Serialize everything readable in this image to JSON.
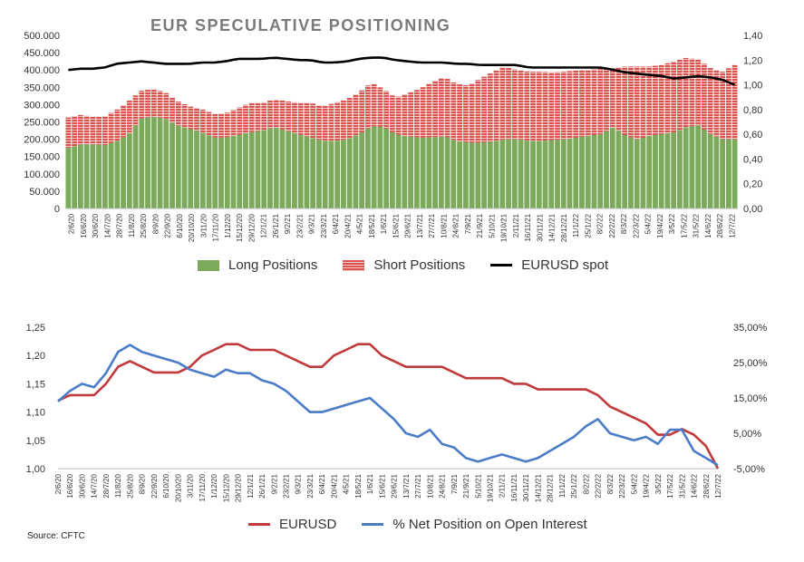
{
  "chart_data": [
    {
      "type": "bar",
      "title": "EUR SPECULATIVE POSITIONING",
      "stacked": true,
      "y_left": {
        "min": 0,
        "max": 500000,
        "ticks": [
          "0",
          "50.000",
          "100.000",
          "150.000",
          "200.000",
          "250.000",
          "300.000",
          "350.000",
          "400.000",
          "450.000",
          "500.000"
        ]
      },
      "y_right": {
        "min": 0,
        "max": 1.4,
        "ticks": [
          "0,00",
          "0,20",
          "0,40",
          "0,60",
          "0,80",
          "1,00",
          "1,20",
          "1,40"
        ]
      },
      "x_tick_labels": [
        "2/6/20",
        "16/6/20",
        "30/6/20",
        "14/7/20",
        "28/7/20",
        "11/8/20",
        "25/8/20",
        "8/9/20",
        "22/9/20",
        "6/10/20",
        "20/10/20",
        "3/11/20",
        "17/11/20",
        "1/12/20",
        "15/12/20",
        "29/12/20",
        "12/1/21",
        "26/1/21",
        "9/2/21",
        "23/2/21",
        "9/3/21",
        "23/3/21",
        "6/4/21",
        "20/4/21",
        "4/5/21",
        "18/5/21",
        "1/6/21",
        "15/6/21",
        "29/6/21",
        "13/7/21",
        "27/7/21",
        "10/8/21",
        "24/8/21",
        "7/9/21",
        "21/9/21",
        "5/10/21",
        "19/10/21",
        "2/11/21",
        "16/11/21",
        "30/11/21",
        "14/12/21",
        "28/12/21",
        "11/1/22",
        "25/1/22",
        "8/2/22",
        "22/2/22",
        "8/3/22",
        "22/3/22",
        "5/4/22",
        "19/4/22",
        "3/5/22",
        "17/5/22",
        "31/5/22",
        "14/6/22",
        "28/6/22",
        "12/7/22"
      ],
      "legend": [
        "Long Positions",
        "Short Positions",
        "EURUSD spot"
      ],
      "colors": {
        "long": "#7aaa5a",
        "short": "#d9534f",
        "spot": "#000000"
      },
      "long_anchors": [
        175000,
        185000,
        185000,
        183000,
        195000,
        215000,
        260000,
        265000,
        260000,
        240000,
        230000,
        220000,
        205000,
        205000,
        212000,
        220000,
        225000,
        235000,
        225000,
        215000,
        205000,
        195000,
        195000,
        200000,
        215000,
        238000,
        235000,
        215000,
        208000,
        205000,
        205000,
        210000,
        195000,
        190000,
        190000,
        193000,
        200000,
        200000,
        195000,
        195000,
        198000,
        200000,
        205000,
        210000,
        215000,
        235000,
        210000,
        200000,
        210000,
        215000,
        220000,
        235000,
        240000,
        215000,
        200000,
        200000
      ],
      "short_anchors": [
        88000,
        85000,
        80000,
        83000,
        90000,
        95000,
        80000,
        80000,
        75000,
        70000,
        65000,
        67000,
        68000,
        70000,
        78000,
        85000,
        80000,
        80000,
        85000,
        90000,
        100000,
        100000,
        110000,
        115000,
        120000,
        125000,
        110000,
        105000,
        125000,
        140000,
        160000,
        170000,
        165000,
        165000,
        185000,
        200000,
        210000,
        200000,
        200000,
        200000,
        195000,
        195000,
        195000,
        190000,
        190000,
        170000,
        200000,
        210000,
        200000,
        200000,
        205000,
        200000,
        190000,
        190000,
        195000,
        215000
      ],
      "spot_anchors": [
        1.12,
        1.13,
        1.13,
        1.14,
        1.17,
        1.18,
        1.19,
        1.18,
        1.17,
        1.17,
        1.17,
        1.18,
        1.18,
        1.19,
        1.21,
        1.21,
        1.21,
        1.22,
        1.21,
        1.2,
        1.2,
        1.18,
        1.18,
        1.19,
        1.21,
        1.22,
        1.22,
        1.2,
        1.19,
        1.18,
        1.18,
        1.18,
        1.17,
        1.17,
        1.16,
        1.16,
        1.16,
        1.16,
        1.14,
        1.14,
        1.14,
        1.14,
        1.14,
        1.14,
        1.14,
        1.12,
        1.1,
        1.09,
        1.08,
        1.07,
        1.05,
        1.06,
        1.07,
        1.06,
        1.04,
        1.0
      ]
    },
    {
      "type": "line",
      "y_left": {
        "min": 1.0,
        "max": 1.25,
        "ticks": [
          "1,00",
          "1,05",
          "1,10",
          "1,15",
          "1,20",
          "1,25"
        ]
      },
      "y_right": {
        "min": -0.05,
        "max": 0.35,
        "ticks": [
          "-5,00%",
          "5,00%",
          "15,00%",
          "25,00%",
          "35,00%"
        ]
      },
      "x_tick_labels": [
        "2/6/20",
        "16/6/20",
        "30/6/20",
        "14/7/20",
        "28/7/20",
        "11/8/20",
        "25/8/20",
        "8/9/20",
        "22/9/20",
        "6/10/20",
        "20/10/20",
        "3/11/20",
        "17/11/20",
        "1/12/20",
        "15/12/20",
        "29/12/20",
        "12/1/21",
        "26/1/21",
        "9/2/21",
        "23/2/21",
        "9/3/21",
        "23/3/21",
        "6/4/21",
        "20/4/21",
        "4/5/21",
        "18/5/21",
        "1/6/21",
        "15/6/21",
        "29/6/21",
        "13/7/21",
        "27/7/21",
        "10/8/21",
        "24/8/21",
        "7/9/21",
        "21/9/21",
        "5/10/21",
        "19/10/21",
        "2/11/21",
        "16/11/21",
        "30/11/21",
        "14/12/21",
        "28/12/21",
        "11/1/22",
        "25/1/22",
        "8/2/22",
        "22/2/22",
        "8/3/22",
        "22/3/22",
        "5/4/22",
        "19/4/22",
        "3/5/22",
        "17/5/22",
        "31/5/22",
        "14/6/22",
        "28/6/22",
        "12/7/22"
      ],
      "series": [
        {
          "name": "EURUSD",
          "color": "#c0393b",
          "axis": "left",
          "values": [
            1.12,
            1.13,
            1.13,
            1.13,
            1.15,
            1.18,
            1.19,
            1.18,
            1.17,
            1.17,
            1.17,
            1.18,
            1.2,
            1.21,
            1.22,
            1.22,
            1.21,
            1.21,
            1.21,
            1.2,
            1.19,
            1.18,
            1.18,
            1.2,
            1.21,
            1.22,
            1.22,
            1.2,
            1.19,
            1.18,
            1.18,
            1.18,
            1.18,
            1.17,
            1.16,
            1.16,
            1.16,
            1.16,
            1.15,
            1.15,
            1.14,
            1.14,
            1.14,
            1.14,
            1.14,
            1.13,
            1.11,
            1.1,
            1.09,
            1.08,
            1.06,
            1.06,
            1.07,
            1.06,
            1.04,
            1.0
          ]
        },
        {
          "name": "% Net Position on Open Interest",
          "color": "#4a7cc7",
          "axis": "right",
          "values": [
            0.14,
            0.17,
            0.19,
            0.18,
            0.22,
            0.28,
            0.3,
            0.28,
            0.27,
            0.26,
            0.25,
            0.23,
            0.22,
            0.21,
            0.23,
            0.22,
            0.22,
            0.2,
            0.19,
            0.17,
            0.14,
            0.11,
            0.11,
            0.12,
            0.13,
            0.14,
            0.15,
            0.12,
            0.09,
            0.05,
            0.04,
            0.06,
            0.02,
            0.01,
            -0.02,
            -0.03,
            -0.02,
            -0.01,
            -0.02,
            -0.03,
            -0.02,
            0.0,
            0.02,
            0.04,
            0.07,
            0.09,
            0.05,
            0.04,
            0.03,
            0.04,
            0.02,
            0.06,
            0.06,
            0.0,
            -0.02,
            -0.04
          ]
        }
      ],
      "legend": [
        "EURUSD",
        "% Net Position on Open Interest"
      ]
    }
  ],
  "source": "Source: CFTC"
}
